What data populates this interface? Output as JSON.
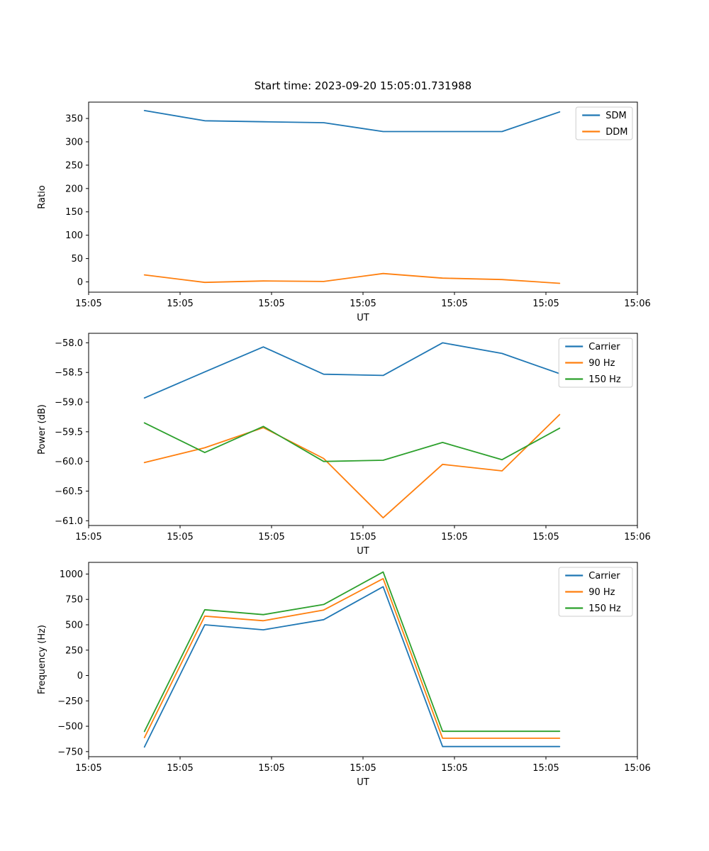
{
  "figure": {
    "title": "Start time: 2023-09-20 15:05:01.731988",
    "background": "#ffffff",
    "text_color": "#000000",
    "colors": {
      "blue": "#1f77b4",
      "orange": "#ff7f0e",
      "green": "#2ca02c"
    }
  },
  "chart_data": [
    {
      "type": "line",
      "title": "Start time: 2023-09-20 15:05:01.731988",
      "xlabel": "UT",
      "ylabel": "Ratio",
      "x_seconds": [
        6.1,
        12.7,
        19.1,
        25.7,
        32.2,
        38.7,
        45.2,
        51.5
      ],
      "xlim_seconds": [
        0,
        60
      ],
      "xtick_seconds": [
        0,
        10,
        20,
        30,
        40,
        50,
        60
      ],
      "xtick_labels": [
        "15:05",
        "15:05",
        "15:05",
        "15:05",
        "15:05",
        "15:05",
        "15:06"
      ],
      "ylim": [
        -22,
        385
      ],
      "ytick_values": [
        0,
        50,
        100,
        150,
        200,
        250,
        300,
        350
      ],
      "ytick_labels": [
        "0",
        "50",
        "100",
        "150",
        "200",
        "250",
        "300",
        "350"
      ],
      "legend_position": "upper right",
      "grid": false,
      "series": [
        {
          "name": "SDM",
          "color": "#1f77b4",
          "values": [
            367,
            345,
            343,
            341,
            322,
            322,
            322,
            364
          ]
        },
        {
          "name": "DDM",
          "color": "#ff7f0e",
          "values": [
            15,
            -1,
            2,
            1,
            18,
            8,
            5,
            -3
          ]
        }
      ]
    },
    {
      "type": "line",
      "title": "",
      "xlabel": "UT",
      "ylabel": "Power (dB)",
      "x_seconds": [
        6.1,
        12.7,
        19.1,
        25.7,
        32.2,
        38.7,
        45.2,
        51.5
      ],
      "xlim_seconds": [
        0,
        60
      ],
      "xtick_seconds": [
        0,
        10,
        20,
        30,
        40,
        50,
        60
      ],
      "xtick_labels": [
        "15:05",
        "15:05",
        "15:05",
        "15:05",
        "15:05",
        "15:05",
        "15:06"
      ],
      "ylim": [
        -61.08,
        -57.84
      ],
      "ytick_values": [
        -61.0,
        -60.5,
        -60.0,
        -59.5,
        -59.0,
        -58.5,
        -58.0
      ],
      "ytick_labels": [
        "−61.0",
        "−60.5",
        "−60.0",
        "−59.5",
        "−59.0",
        "−58.5",
        "−58.0"
      ],
      "legend_position": "upper right",
      "grid": false,
      "series": [
        {
          "name": "Carrier",
          "color": "#1f77b4",
          "values": [
            -58.93,
            -58.49,
            -58.07,
            -58.53,
            -58.55,
            -58.0,
            -58.18,
            -58.52
          ]
        },
        {
          "name": "90 Hz",
          "color": "#ff7f0e",
          "values": [
            -60.02,
            -59.77,
            -59.43,
            -59.95,
            -60.95,
            -60.05,
            -60.16,
            -59.21
          ]
        },
        {
          "name": "150 Hz",
          "color": "#2ca02c",
          "values": [
            -59.35,
            -59.85,
            -59.41,
            -60.0,
            -59.98,
            -59.68,
            -59.97,
            -59.44
          ]
        }
      ]
    },
    {
      "type": "line",
      "title": "",
      "xlabel": "UT",
      "ylabel": "Frequency (Hz)",
      "x_seconds": [
        6.1,
        12.7,
        19.1,
        25.7,
        32.2,
        38.7,
        45.2,
        51.5
      ],
      "xlim_seconds": [
        0,
        60
      ],
      "xtick_seconds": [
        0,
        10,
        20,
        30,
        40,
        50,
        60
      ],
      "xtick_labels": [
        "15:05",
        "15:05",
        "15:05",
        "15:05",
        "15:05",
        "15:05",
        "15:06"
      ],
      "ylim": [
        -800,
        1115
      ],
      "ytick_values": [
        -750,
        -500,
        -250,
        0,
        250,
        500,
        750,
        1000
      ],
      "ytick_labels": [
        "−750",
        "−500",
        "−250",
        "0",
        "250",
        "500",
        "750",
        "1000"
      ],
      "legend_position": "upper right",
      "grid": false,
      "series": [
        {
          "name": "Carrier",
          "color": "#1f77b4",
          "values": [
            -705,
            500,
            450,
            550,
            875,
            -700,
            -700,
            -700
          ]
        },
        {
          "name": "90 Hz",
          "color": "#ff7f0e",
          "values": [
            -612,
            585,
            540,
            645,
            955,
            -618,
            -618,
            -618
          ]
        },
        {
          "name": "150 Hz",
          "color": "#2ca02c",
          "values": [
            -552,
            648,
            600,
            700,
            1020,
            -550,
            -550,
            -550
          ]
        }
      ]
    }
  ]
}
